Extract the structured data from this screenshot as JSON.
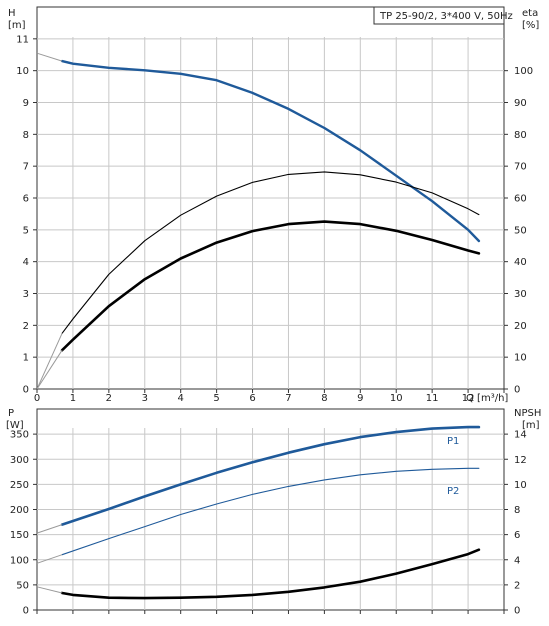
{
  "chart_data": [
    {
      "type": "line",
      "title": "TP 25-90/2, 3*400 V, 50Hz",
      "xlabel": "Q [m³/h]",
      "ylabel": "H",
      "ylabel_unit": "[m]",
      "y2label": "eta",
      "y2label_unit": "[%]",
      "xlim": [
        0,
        13
      ],
      "ylim": [
        0,
        12
      ],
      "y2lim": [
        0,
        120
      ],
      "x_ticks": [
        "0",
        "1",
        "2",
        "3",
        "4",
        "5",
        "6",
        "7",
        "8",
        "9",
        "10",
        "11",
        "12"
      ],
      "y_ticks": [
        "0",
        "1",
        "2",
        "3",
        "4",
        "5",
        "6",
        "7",
        "8",
        "9",
        "10",
        "11"
      ],
      "y2_ticks": [
        "0",
        "10",
        "20",
        "30",
        "40",
        "50",
        "60",
        "70",
        "80",
        "90",
        "100"
      ],
      "grid": true,
      "series": [
        {
          "color": "#1f5a9a",
          "axis": "left",
          "points": [
            [
              0.7,
              10.3
            ],
            [
              1,
              10.22
            ],
            [
              2,
              10.09
            ],
            [
              3,
              10.01
            ],
            [
              4,
              9.9
            ],
            [
              5,
              9.7
            ],
            [
              6,
              9.3
            ],
            [
              7,
              8.8
            ],
            [
              8,
              8.2
            ],
            [
              9,
              7.5
            ],
            [
              10,
              6.7
            ],
            [
              11,
              5.9
            ],
            [
              12,
              5.0
            ],
            [
              12.3,
              4.65
            ]
          ],
          "extrapolation": [
            [
              0,
              10.55
            ],
            [
              0.7,
              10.3
            ]
          ]
        },
        {
          "color": "#000000",
          "axis": "right",
          "weight": "thick",
          "points": [
            [
              0.7,
              12.2
            ],
            [
              1,
              15.5
            ],
            [
              2,
              26
            ],
            [
              3,
              34.5
            ],
            [
              4,
              41.0
            ],
            [
              5,
              46.0
            ],
            [
              6,
              49.6
            ],
            [
              7,
              51.8
            ],
            [
              8,
              52.6
            ],
            [
              9,
              51.8
            ],
            [
              10,
              49.7
            ],
            [
              11,
              46.8
            ],
            [
              12,
              43.5
            ],
            [
              12.3,
              42.6
            ]
          ],
          "extrapolation": [
            [
              0,
              0
            ],
            [
              0.7,
              12.2
            ]
          ]
        },
        {
          "color": "#000000",
          "axis": "right",
          "weight": "thin",
          "points": [
            [
              0.7,
              17.5
            ],
            [
              1,
              22
            ],
            [
              2,
              36
            ],
            [
              3,
              46.6
            ],
            [
              4,
              54.6
            ],
            [
              5,
              60.6
            ],
            [
              6,
              64.9
            ],
            [
              7,
              67.4
            ],
            [
              8,
              68.2
            ],
            [
              9,
              67.3
            ],
            [
              10,
              65.0
            ],
            [
              11,
              61.6
            ],
            [
              12,
              56.6
            ],
            [
              12.3,
              54.8
            ]
          ],
          "extrapolation": [
            [
              0,
              0
            ],
            [
              0.7,
              17.5
            ]
          ]
        }
      ]
    },
    {
      "type": "line",
      "ylabel": "P",
      "ylabel_unit": "[W]",
      "y2label": "NPSH",
      "y2label_unit": "[m]",
      "xlim": [
        0,
        13
      ],
      "ylim": [
        0,
        400
      ],
      "y2lim": [
        0,
        16
      ],
      "y_ticks": [
        "0",
        "50",
        "100",
        "150",
        "200",
        "250",
        "300",
        "350"
      ],
      "y2_ticks": [
        "0",
        "2",
        "4",
        "6",
        "8",
        "10",
        "12",
        "14"
      ],
      "grid": true,
      "series": [
        {
          "name": "P1",
          "color": "#1f5a9a",
          "axis": "left",
          "weight": "thick",
          "points": [
            [
              0.7,
              170
            ],
            [
              2,
              201
            ],
            [
              3,
              226
            ],
            [
              4,
              250
            ],
            [
              5,
              273
            ],
            [
              6,
              294
            ],
            [
              7,
              313
            ],
            [
              8,
              330
            ],
            [
              9,
              344
            ],
            [
              10,
              354
            ],
            [
              11,
              361
            ],
            [
              12,
              364
            ],
            [
              12.3,
              364
            ]
          ],
          "extrapolation": [
            [
              0,
              153
            ],
            [
              0.7,
              170
            ]
          ]
        },
        {
          "name": "P2",
          "color": "#1f5a9a",
          "axis": "left",
          "weight": "thin",
          "points": [
            [
              0.7,
              110
            ],
            [
              2,
              142
            ],
            [
              3,
              166
            ],
            [
              4,
              190
            ],
            [
              5,
              211
            ],
            [
              6,
              230
            ],
            [
              7,
              246
            ],
            [
              8,
              259
            ],
            [
              9,
              269
            ],
            [
              10,
              276
            ],
            [
              11,
              280
            ],
            [
              12,
              282
            ],
            [
              12.3,
              282
            ]
          ],
          "extrapolation": [
            [
              0,
              93
            ],
            [
              0.7,
              110
            ]
          ]
        },
        {
          "color": "#000000",
          "axis": "right",
          "weight": "thick",
          "points": [
            [
              0.7,
              1.35
            ],
            [
              1,
              1.2
            ],
            [
              2,
              0.98
            ],
            [
              3,
              0.95
            ],
            [
              4,
              0.98
            ],
            [
              5,
              1.05
            ],
            [
              6,
              1.2
            ],
            [
              7,
              1.45
            ],
            [
              8,
              1.8
            ],
            [
              9,
              2.25
            ],
            [
              10,
              2.9
            ],
            [
              11,
              3.65
            ],
            [
              12,
              4.45
            ],
            [
              12.3,
              4.8
            ]
          ],
          "extrapolation": [
            [
              0,
              1.85
            ],
            [
              0.7,
              1.35
            ]
          ]
        }
      ]
    }
  ]
}
